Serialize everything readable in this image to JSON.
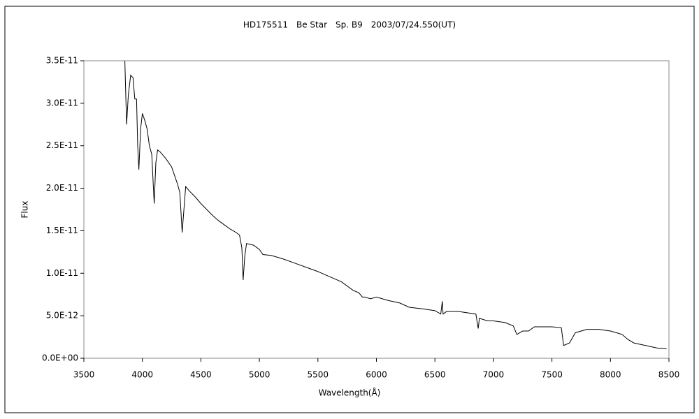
{
  "chart_data": {
    "type": "line",
    "title": "HD175511　Be Star　Sp. B9　2003/07/24.550(UT)",
    "x_label": "Wavelength(Å)",
    "y_label": "Flux",
    "x": [
      3850,
      3860,
      3865,
      3880,
      3900,
      3920,
      3935,
      3950,
      3960,
      3970,
      3985,
      4000,
      4020,
      4040,
      4060,
      4080,
      4101,
      4115,
      4130,
      4150,
      4200,
      4250,
      4300,
      4320,
      4340,
      4355,
      4370,
      4400,
      4450,
      4500,
      4550,
      4600,
      4650,
      4700,
      4750,
      4800,
      4830,
      4850,
      4861,
      4875,
      4890,
      4950,
      5000,
      5030,
      5100,
      5200,
      5300,
      5400,
      5500,
      5600,
      5700,
      5800,
      5850,
      5880,
      5900,
      5950,
      6000,
      6100,
      6200,
      6280,
      6400,
      6500,
      6550,
      6563,
      6570,
      6600,
      6700,
      6850,
      6870,
      6880,
      6950,
      7000,
      7100,
      7170,
      7200,
      7250,
      7300,
      7350,
      7400,
      7500,
      7580,
      7600,
      7650,
      7700,
      7800,
      7900,
      8000,
      8100,
      8150,
      8200,
      8300,
      8400,
      8480
    ],
    "series": [
      {
        "name": "Flux",
        "color": "#000000",
        "values": [
          3.5e-11,
          3e-11,
          2.75e-11,
          3.1e-11,
          3.33e-11,
          3.3e-11,
          3.05e-11,
          3.05e-11,
          2.5e-11,
          2.22e-11,
          2.7e-11,
          2.88e-11,
          2.8e-11,
          2.7e-11,
          2.5e-11,
          2.4e-11,
          1.82e-11,
          2.3e-11,
          2.45e-11,
          2.43e-11,
          2.35e-11,
          2.25e-11,
          2.05e-11,
          1.95e-11,
          1.48e-11,
          1.75e-11,
          2.02e-11,
          1.97e-11,
          1.9e-11,
          1.82e-11,
          1.75e-11,
          1.68e-11,
          1.62e-11,
          1.57e-11,
          1.52e-11,
          1.48e-11,
          1.45e-11,
          1.3e-11,
          9.2e-12,
          1.2e-11,
          1.35e-11,
          1.33e-11,
          1.28e-11,
          1.22e-11,
          1.21e-11,
          1.17e-11,
          1.12e-11,
          1.07e-11,
          1.02e-11,
          9.6e-12,
          9e-12,
          8e-12,
          7.7e-12,
          7.2e-12,
          7.2e-12,
          7e-12,
          7.2e-12,
          6.8e-12,
          6.5e-12,
          6e-12,
          5.8e-12,
          5.6e-12,
          5.2e-12,
          6.7e-12,
          5.2e-12,
          5.5e-12,
          5.5e-12,
          5.2e-12,
          3.5e-12,
          4.7e-12,
          4.4e-12,
          4.4e-12,
          4.2e-12,
          3.8e-12,
          2.8e-12,
          3.2e-12,
          3.2e-12,
          3.7e-12,
          3.7e-12,
          3.7e-12,
          3.6e-12,
          1.5e-12,
          1.8e-12,
          3e-12,
          3.4e-12,
          3.4e-12,
          3.2e-12,
          2.8e-12,
          2.2e-12,
          1.8e-12,
          1.5e-12,
          1.2e-12,
          1.1e-12
        ]
      }
    ],
    "xlim": [
      3500,
      8500
    ],
    "xticks": [
      3500,
      4000,
      4500,
      5000,
      5500,
      6000,
      6500,
      7000,
      7500,
      8000,
      8500
    ],
    "ylim": [
      0,
      3.5e-11
    ],
    "yticks": [
      {
        "value": 0,
        "label": "0.0E+00"
      },
      {
        "value": 5e-12,
        "label": "5.0E-12"
      },
      {
        "value": 1e-11,
        "label": "1.0E-11"
      },
      {
        "value": 1.5e-11,
        "label": "1.5E-11"
      },
      {
        "value": 2e-11,
        "label": "2.0E-11"
      },
      {
        "value": 2.5e-11,
        "label": "2.5E-11"
      },
      {
        "value": 3e-11,
        "label": "3.0E-11"
      },
      {
        "value": 3.5e-11,
        "label": "3.5E-11"
      }
    ],
    "grid": false
  }
}
